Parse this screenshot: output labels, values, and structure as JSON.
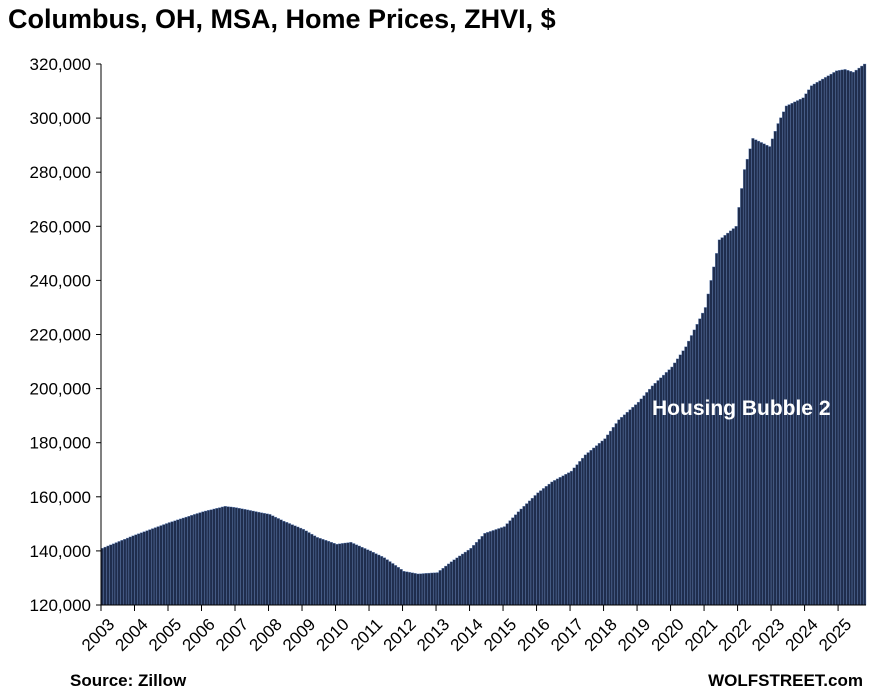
{
  "title": "Columbus, OH, MSA, Home Prices, ZHVI, $",
  "source": "Source: Zillow",
  "credit": "WOLFSTREET.com",
  "colors": {
    "bar": "#1f2d4d",
    "bar_edge": "#6f8fc4",
    "axis": "#000000",
    "annotation_text": "#ffffff"
  },
  "chart_data": {
    "type": "bar",
    "title": "Columbus, OH, MSA, Home Prices, ZHVI, $",
    "frequency": "monthly",
    "start": "2003-01",
    "end": "2025-10",
    "ylim": [
      120000,
      320000
    ],
    "yticks": [
      120000,
      140000,
      160000,
      180000,
      200000,
      220000,
      240000,
      260000,
      280000,
      300000,
      320000
    ],
    "ytick_labels": [
      "120,000",
      "140,000",
      "160,000",
      "180,000",
      "200,000",
      "220,000",
      "240,000",
      "260,000",
      "280,000",
      "300,000",
      "320,000"
    ],
    "xtick_labels": [
      "2003",
      "2004",
      "2005",
      "2006",
      "2007",
      "2008",
      "2009",
      "2010",
      "2011",
      "2012",
      "2013",
      "2014",
      "2015",
      "2016",
      "2017",
      "2018",
      "2019",
      "2020",
      "2021",
      "2022",
      "2023",
      "2024",
      "2025"
    ],
    "grid": false,
    "annotation": "Housing Bubble 2",
    "anchors": [
      [
        "2003-01",
        141000
      ],
      [
        "2004-01",
        146000
      ],
      [
        "2005-01",
        150500
      ],
      [
        "2006-01",
        154500
      ],
      [
        "2006-09",
        156500
      ],
      [
        "2007-01",
        156000
      ],
      [
        "2008-01",
        153500
      ],
      [
        "2008-06",
        151000
      ],
      [
        "2009-01",
        148000
      ],
      [
        "2009-06",
        145000
      ],
      [
        "2010-01",
        142500
      ],
      [
        "2010-06",
        143200
      ],
      [
        "2011-01",
        140000
      ],
      [
        "2011-06",
        137500
      ],
      [
        "2012-01",
        132500
      ],
      [
        "2012-06",
        131500
      ],
      [
        "2013-01",
        132000
      ],
      [
        "2013-06",
        136000
      ],
      [
        "2014-01",
        141000
      ],
      [
        "2014-06",
        146500
      ],
      [
        "2015-01",
        149000
      ],
      [
        "2015-06",
        154500
      ],
      [
        "2016-01",
        161500
      ],
      [
        "2016-06",
        165500
      ],
      [
        "2017-01",
        169500
      ],
      [
        "2017-06",
        175500
      ],
      [
        "2018-01",
        181500
      ],
      [
        "2018-06",
        188500
      ],
      [
        "2019-01",
        195000
      ],
      [
        "2019-06",
        201000
      ],
      [
        "2020-01",
        208000
      ],
      [
        "2020-06",
        215500
      ],
      [
        "2021-01",
        230000
      ],
      [
        "2021-06",
        255000
      ],
      [
        "2021-12",
        260000
      ],
      [
        "2022-03",
        281000
      ],
      [
        "2022-06",
        292500
      ],
      [
        "2022-12",
        289500
      ],
      [
        "2023-03",
        298000
      ],
      [
        "2023-06",
        304500
      ],
      [
        "2023-12",
        307500
      ],
      [
        "2024-03",
        312000
      ],
      [
        "2024-12",
        317500
      ],
      [
        "2025-03",
        318000
      ],
      [
        "2025-06",
        317000
      ],
      [
        "2025-10",
        320000
      ]
    ]
  }
}
